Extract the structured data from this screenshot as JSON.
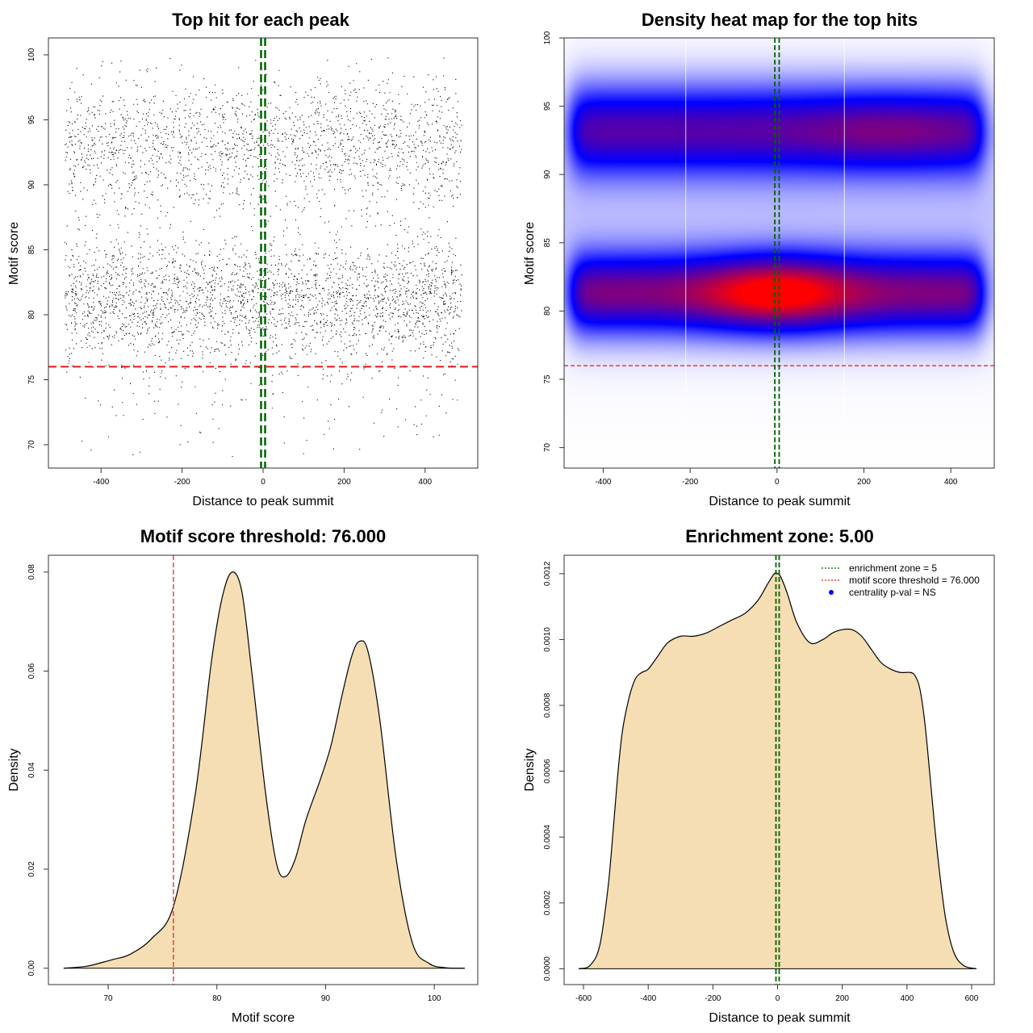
{
  "colors": {
    "threshold": "#e41a1c",
    "zone": "#006400",
    "fill": "#f5deb3",
    "heat_low": "#ffffff",
    "heat_mid": "#0000ff",
    "heat_high": "#ff0000",
    "centrality": "#0000ff"
  },
  "chart_data": [
    {
      "type": "scatter",
      "title": "Top hit for each peak",
      "xlabel": "Distance to peak summit",
      "ylabel": "Motif score",
      "xlim": [
        -530,
        530
      ],
      "ylim": [
        68.2,
        101.3
      ],
      "xticks": [
        -400,
        -200,
        0,
        200,
        400
      ],
      "yticks": [
        70,
        75,
        80,
        85,
        90,
        95,
        100
      ],
      "x_range": [
        -490,
        490
      ],
      "clusters": [
        {
          "center": 81.2,
          "sd": 2.3,
          "weight": 0.52
        },
        {
          "center": 93.0,
          "sd": 2.6,
          "weight": 0.43
        },
        {
          "center": 75.5,
          "sd": 3.5,
          "weight": 0.05
        }
      ],
      "n_points": 9000,
      "threshold": 76,
      "zone_lines": [
        -5,
        5
      ]
    },
    {
      "type": "heatmap",
      "title": "Density heat map for the top hits",
      "xlabel": "Distance to peak summit",
      "ylabel": "Motif score",
      "xlim": [
        -490,
        500
      ],
      "ylim": [
        68.5,
        100
      ],
      "xticks": [
        -400,
        -200,
        0,
        200,
        400
      ],
      "yticks": [
        70,
        75,
        80,
        85,
        90,
        95,
        100
      ],
      "threshold": 76,
      "zone_lines": [
        -5,
        5
      ],
      "white_lines": [
        -210,
        155
      ],
      "bands": [
        {
          "center": 81.3,
          "sd": 1.8,
          "weight": 0.6
        },
        {
          "center": 93.2,
          "sd": 2.0,
          "weight": 0.5
        }
      ],
      "hotspot": {
        "x": 0,
        "y": 81.3,
        "sx": 110,
        "sy": 1.6,
        "weight": 0.45
      },
      "top_right_spot": {
        "x": 250,
        "y": 93.2,
        "sx": 130,
        "sy": 1.6,
        "weight": 0.1
      }
    },
    {
      "type": "area",
      "title": "Motif score threshold: 76.000",
      "xlabel": "Motif score",
      "ylabel": "Density",
      "xlim": [
        64.5,
        104
      ],
      "ylim": [
        -0.0033,
        0.0834
      ],
      "xticks": [
        70,
        80,
        90,
        100
      ],
      "yticks": [
        0.0,
        0.02,
        0.04,
        0.06,
        0.08
      ],
      "ytick_labels": [
        "0.00",
        "0.02",
        "0.04",
        "0.06",
        "0.08"
      ],
      "threshold": 76,
      "x": [
        65.9,
        68,
        69.5,
        70.5,
        72,
        74,
        76,
        78,
        79.5,
        80.5,
        81.4,
        82.3,
        83.2,
        84.5,
        85.5,
        86.3,
        87.2,
        88.2,
        89.5,
        90.5,
        91.5,
        92.4,
        93.1,
        93.9,
        95,
        96.5,
        98,
        99.5,
        101,
        102.8
      ],
      "y": [
        0.0,
        0.0004,
        0.0012,
        0.0018,
        0.0028,
        0.006,
        0.0125,
        0.035,
        0.062,
        0.075,
        0.08,
        0.076,
        0.06,
        0.035,
        0.021,
        0.0185,
        0.022,
        0.03,
        0.038,
        0.045,
        0.055,
        0.063,
        0.066,
        0.064,
        0.05,
        0.022,
        0.005,
        0.001,
        0.0001,
        0.0
      ]
    },
    {
      "type": "area",
      "title": "Enrichment zone: 5.00",
      "xlabel": "Distance to peak summit",
      "ylabel": "Density",
      "xlim": [
        -660,
        670
      ],
      "ylim": [
        -4.8e-05,
        0.001256
      ],
      "xticks": [
        -600,
        -400,
        -200,
        0,
        200,
        400,
        600
      ],
      "yticks": [
        0,
        0.0002,
        0.0004,
        0.0006,
        0.0008,
        0.001,
        0.0012
      ],
      "ytick_labels": [
        "0.0000",
        "0.0002",
        "0.0004",
        "0.0006",
        "0.0008",
        "0.0010",
        "0.0012"
      ],
      "zone_lines": [
        -5,
        5
      ],
      "x": [
        -615,
        -580,
        -550,
        -525,
        -510,
        -495,
        -480,
        -460,
        -440,
        -420,
        -400,
        -370,
        -340,
        -300,
        -260,
        -220,
        -180,
        -140,
        -100,
        -60,
        -30,
        -10,
        0,
        10,
        30,
        60,
        100,
        140,
        170,
        200,
        230,
        260,
        290,
        320,
        350,
        380,
        410,
        425,
        440,
        455,
        470,
        485,
        500,
        520,
        545,
        575,
        615
      ],
      "y": [
        0,
        1e-05,
        7e-05,
        0.00024,
        0.0004,
        0.00058,
        0.00072,
        0.00082,
        0.00088,
        0.0009,
        0.00091,
        0.00095,
        0.00099,
        0.00101,
        0.00101,
        0.00102,
        0.00104,
        0.00106,
        0.00108,
        0.00112,
        0.00117,
        0.0012,
        0.0012,
        0.00119,
        0.00114,
        0.00105,
        0.00099,
        0.001,
        0.00102,
        0.00103,
        0.00103,
        0.00101,
        0.00097,
        0.00093,
        0.00091,
        0.0009,
        0.0009,
        0.00089,
        0.00085,
        0.00075,
        0.0006,
        0.00044,
        0.0003,
        0.00015,
        5e-05,
        1e-05,
        0
      ],
      "legend": [
        {
          "label": "enrichment zone = 5",
          "kind": "zone"
        },
        {
          "label": "motif score threshold = 76.000",
          "kind": "threshold"
        },
        {
          "label": "centrality p-val = NS",
          "kind": "centrality"
        }
      ]
    }
  ]
}
